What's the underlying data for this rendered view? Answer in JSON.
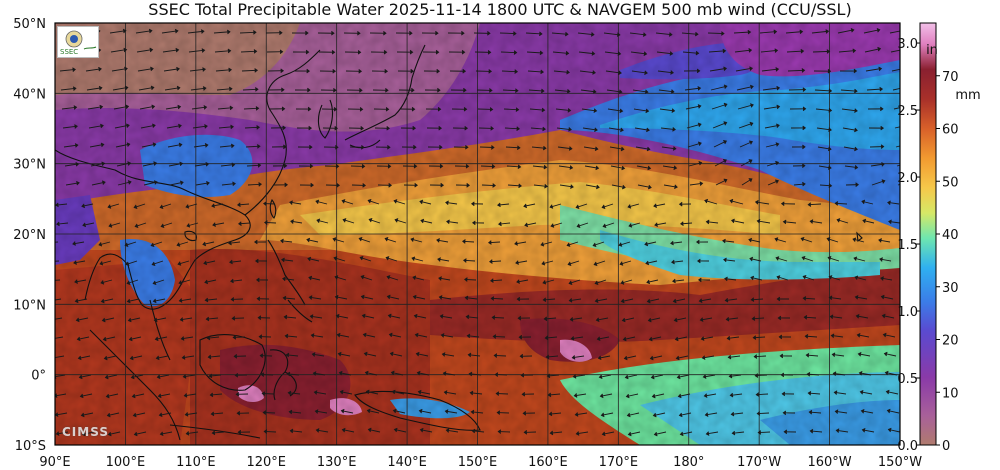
{
  "title": "SSEC Total Precipitable Water  2025-11-14 1800 UTC & NAVGEM 500 mb wind (CCU/SSL)",
  "map": {
    "lon_range": [
      90,
      210
    ],
    "lat_range": [
      -10,
      50
    ],
    "lon_ticks": [
      {
        "lon": 90,
        "label": "90°E"
      },
      {
        "lon": 100,
        "label": "100°E"
      },
      {
        "lon": 110,
        "label": "110°E"
      },
      {
        "lon": 120,
        "label": "120°E"
      },
      {
        "lon": 130,
        "label": "130°E"
      },
      {
        "lon": 140,
        "label": "140°E"
      },
      {
        "lon": 150,
        "label": "150°E"
      },
      {
        "lon": 160,
        "label": "160°E"
      },
      {
        "lon": 170,
        "label": "170°E"
      },
      {
        "lon": 180,
        "label": "180°"
      },
      {
        "lon": 190,
        "label": "170°W"
      },
      {
        "lon": 200,
        "label": "160°W"
      },
      {
        "lon": 210,
        "label": "150°W"
      }
    ],
    "lat_ticks": [
      {
        "lat": 50,
        "label": "50°N"
      },
      {
        "lat": 40,
        "label": "40°N"
      },
      {
        "lat": 30,
        "label": "30°N"
      },
      {
        "lat": 20,
        "label": "20°N"
      },
      {
        "lat": 10,
        "label": "10°N"
      },
      {
        "lat": 0,
        "label": "0°"
      },
      {
        "lat": -10,
        "label": "10°S"
      }
    ]
  },
  "colorbar": {
    "in_unit": "in",
    "mm_unit": "mm",
    "in_ticks": [
      {
        "v": 0.0,
        "label": "0.0"
      },
      {
        "v": 0.5,
        "label": "0.5"
      },
      {
        "v": 1.0,
        "label": "1.0"
      },
      {
        "v": 1.5,
        "label": "1.5"
      },
      {
        "v": 2.0,
        "label": "2.0"
      },
      {
        "v": 2.5,
        "label": "2.5"
      },
      {
        "v": 3.0,
        "label": "3.0"
      }
    ],
    "mm_ticks": [
      {
        "v": 0,
        "label": "0"
      },
      {
        "v": 10,
        "label": "10"
      },
      {
        "v": 20,
        "label": "20"
      },
      {
        "v": 30,
        "label": "30"
      },
      {
        "v": 40,
        "label": "40"
      },
      {
        "v": 50,
        "label": "50"
      },
      {
        "v": 60,
        "label": "60"
      },
      {
        "v": 70,
        "label": "70"
      }
    ],
    "range_mm": [
      0,
      80
    ],
    "colors": [
      "#b07b6e",
      "#a8609a",
      "#8a3aa8",
      "#6a3cc0",
      "#3b7de8",
      "#2fa8f0",
      "#4fd0e0",
      "#6ee6a0",
      "#d6e866",
      "#f6c84a",
      "#f29a30",
      "#d8602a",
      "#a8302a",
      "#8a2030",
      "#e080c0",
      "#f2c0e8"
    ]
  },
  "logo_text": "SSEC",
  "watermark": "CIMSS"
}
